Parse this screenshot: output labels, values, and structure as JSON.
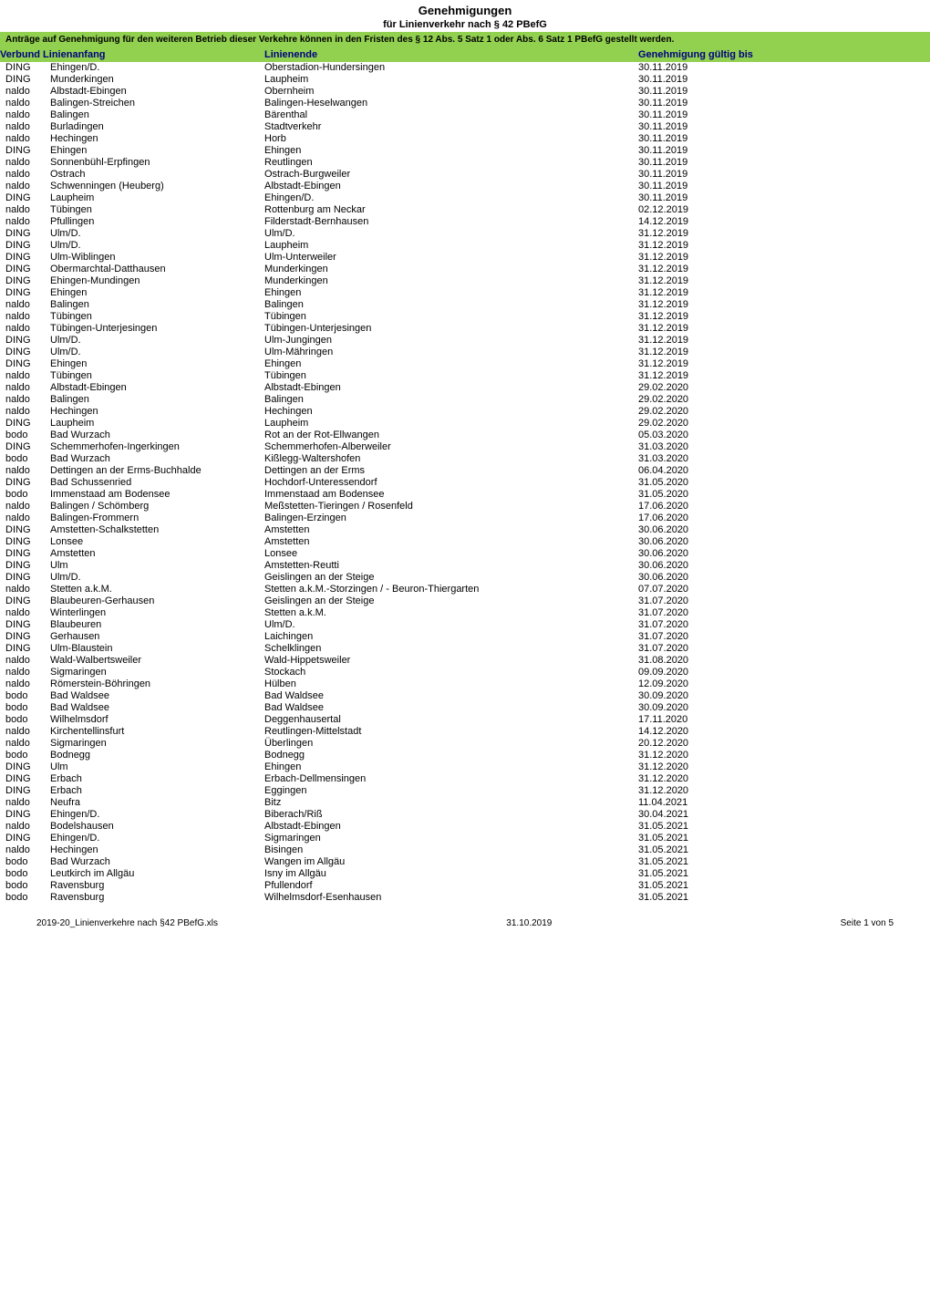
{
  "title": "Genehmigungen",
  "subtitle": "für Linienverkehr nach § 42 PBefG",
  "notice": "Anträge auf Genehmigung für den weiteren Betrieb dieser Verkehre können in den Fristen des § 12 Abs. 5 Satz 1 oder Abs. 6 Satz 1 PBefG gestellt werden.",
  "headers": {
    "anfang": "Verbund Linienanfang",
    "ende": "Linienende",
    "gueltig": "Genehmigung gültig bis"
  },
  "colors": {
    "header_bg": "#92d050",
    "header_text": "#000080",
    "body_bg": "#ffffff",
    "text": "#000000"
  },
  "rows": [
    {
      "v": "DING",
      "a": "Ehingen/D.",
      "e": "Oberstadion-Hundersingen",
      "g": "30.11.2019"
    },
    {
      "v": "DING",
      "a": "Munderkingen",
      "e": "Laupheim",
      "g": "30.11.2019"
    },
    {
      "v": "naldo",
      "a": "Albstadt-Ebingen",
      "e": "Obernheim",
      "g": "30.11.2019"
    },
    {
      "v": "naldo",
      "a": "Balingen-Streichen",
      "e": "Balingen-Heselwangen",
      "g": "30.11.2019"
    },
    {
      "v": "naldo",
      "a": "Balingen",
      "e": "Bärenthal",
      "g": "30.11.2019"
    },
    {
      "v": "naldo",
      "a": "Burladingen",
      "e": "Stadtverkehr",
      "g": "30.11.2019"
    },
    {
      "v": "naldo",
      "a": "Hechingen",
      "e": "Horb",
      "g": "30.11.2019"
    },
    {
      "v": "DING",
      "a": "Ehingen",
      "e": "Ehingen",
      "g": "30.11.2019"
    },
    {
      "v": "naldo",
      "a": "Sonnenbühl-Erpfingen",
      "e": "Reutlingen",
      "g": "30.11.2019"
    },
    {
      "v": "naldo",
      "a": "Ostrach",
      "e": "Ostrach-Burgweiler",
      "g": "30.11.2019"
    },
    {
      "v": "naldo",
      "a": "Schwenningen (Heuberg)",
      "e": "Albstadt-Ebingen",
      "g": "30.11.2019"
    },
    {
      "v": "DING",
      "a": "Laupheim",
      "e": "Ehingen/D.",
      "g": "30.11.2019"
    },
    {
      "v": "naldo",
      "a": "Tübingen",
      "e": "Rottenburg am Neckar",
      "g": "02.12.2019"
    },
    {
      "v": "naldo",
      "a": "Pfullingen",
      "e": "Filderstadt-Bernhausen",
      "g": "14.12.2019"
    },
    {
      "v": "DING",
      "a": "Ulm/D.",
      "e": "Ulm/D.",
      "g": "31.12.2019"
    },
    {
      "v": "DING",
      "a": "Ulm/D.",
      "e": "Laupheim",
      "g": "31.12.2019"
    },
    {
      "v": "DING",
      "a": "Ulm-Wiblingen",
      "e": "Ulm-Unterweiler",
      "g": "31.12.2019"
    },
    {
      "v": "DING",
      "a": "Obermarchtal-Datthausen",
      "e": "Munderkingen",
      "g": "31.12.2019"
    },
    {
      "v": "DING",
      "a": "Ehingen-Mundingen",
      "e": "Munderkingen",
      "g": "31.12.2019"
    },
    {
      "v": "DING",
      "a": "Ehingen",
      "e": "Ehingen",
      "g": "31.12.2019"
    },
    {
      "v": "naldo",
      "a": "Balingen",
      "e": "Balingen",
      "g": "31.12.2019"
    },
    {
      "v": "naldo",
      "a": "Tübingen",
      "e": "Tübingen",
      "g": "31.12.2019"
    },
    {
      "v": "naldo",
      "a": "Tübingen-Unterjesingen",
      "e": "Tübingen-Unterjesingen",
      "g": "31.12.2019"
    },
    {
      "v": "DING",
      "a": "Ulm/D.",
      "e": "Ulm-Jungingen",
      "g": "31.12.2019"
    },
    {
      "v": "DING",
      "a": "Ulm/D.",
      "e": "Ulm-Mähringen",
      "g": "31.12.2019"
    },
    {
      "v": "DING",
      "a": "Ehingen",
      "e": "Ehingen",
      "g": "31.12.2019"
    },
    {
      "v": "naldo",
      "a": "Tübingen",
      "e": "Tübingen",
      "g": "31.12.2019"
    },
    {
      "v": "naldo",
      "a": "Albstadt-Ebingen",
      "e": "Albstadt-Ebingen",
      "g": "29.02.2020"
    },
    {
      "v": "naldo",
      "a": "Balingen",
      "e": "Balingen",
      "g": "29.02.2020"
    },
    {
      "v": "naldo",
      "a": "Hechingen",
      "e": "Hechingen",
      "g": "29.02.2020"
    },
    {
      "v": "DING",
      "a": "Laupheim",
      "e": "Laupheim",
      "g": "29.02.2020"
    },
    {
      "v": "bodo",
      "a": "Bad Wurzach",
      "e": "Rot an der Rot-Ellwangen",
      "g": "05.03.2020"
    },
    {
      "v": "DING",
      "a": "Schemmerhofen-Ingerkingen",
      "e": "Schemmerhofen-Alberweiler",
      "g": "31.03.2020"
    },
    {
      "v": "bodo",
      "a": "Bad Wurzach",
      "e": "Kißlegg-Waltershofen",
      "g": "31.03.2020"
    },
    {
      "v": "naldo",
      "a": "Dettingen an der Erms-Buchhalde",
      "e": "Dettingen an der Erms",
      "g": "06.04.2020"
    },
    {
      "v": "DING",
      "a": "Bad Schussenried",
      "e": "Hochdorf-Unteressendorf",
      "g": "31.05.2020"
    },
    {
      "v": "bodo",
      "a": "Immenstaad am Bodensee",
      "e": "Immenstaad am Bodensee",
      "g": "31.05.2020"
    },
    {
      "v": "naldo",
      "a": "Balingen / Schömberg",
      "e": "Meßstetten-Tieringen / Rosenfeld",
      "g": "17.06.2020"
    },
    {
      "v": "naldo",
      "a": "Balingen-Frommern",
      "e": "Balingen-Erzingen",
      "g": "17.06.2020"
    },
    {
      "v": "DING",
      "a": "Amstetten-Schalkstetten",
      "e": "Amstetten",
      "g": "30.06.2020"
    },
    {
      "v": "DING",
      "a": "Lonsee",
      "e": "Amstetten",
      "g": "30.06.2020"
    },
    {
      "v": "DING",
      "a": "Amstetten",
      "e": "Lonsee",
      "g": "30.06.2020"
    },
    {
      "v": "DING",
      "a": "Ulm",
      "e": "Amstetten-Reutti",
      "g": "30.06.2020"
    },
    {
      "v": "DING",
      "a": "Ulm/D.",
      "e": "Geislingen an der Steige",
      "g": "30.06.2020"
    },
    {
      "v": "naldo",
      "a": "Stetten a.k.M.",
      "e": "Stetten a.k.M.-Storzingen / - Beuron-Thiergarten",
      "g": "07.07.2020"
    },
    {
      "v": "DING",
      "a": "Blaubeuren-Gerhausen",
      "e": "Geislingen an der Steige",
      "g": "31.07.2020"
    },
    {
      "v": "naldo",
      "a": "Winterlingen",
      "e": "Stetten a.k.M.",
      "g": "31.07.2020"
    },
    {
      "v": "DING",
      "a": "Blaubeuren",
      "e": "Ulm/D.",
      "g": "31.07.2020"
    },
    {
      "v": "DING",
      "a": "Gerhausen",
      "e": "Laichingen",
      "g": "31.07.2020"
    },
    {
      "v": "DING",
      "a": "Ulm-Blaustein",
      "e": "Schelklingen",
      "g": "31.07.2020"
    },
    {
      "v": "naldo",
      "a": "Wald-Walbertsweiler",
      "e": "Wald-Hippetsweiler",
      "g": "31.08.2020"
    },
    {
      "v": "naldo",
      "a": "Sigmaringen",
      "e": "Stockach",
      "g": "09.09.2020"
    },
    {
      "v": "naldo",
      "a": "Römerstein-Böhringen",
      "e": "Hülben",
      "g": "12.09.2020"
    },
    {
      "v": "bodo",
      "a": "Bad Waldsee",
      "e": "Bad Waldsee",
      "g": "30.09.2020"
    },
    {
      "v": "bodo",
      "a": "Bad Waldsee",
      "e": "Bad Waldsee",
      "g": "30.09.2020"
    },
    {
      "v": "bodo",
      "a": "Wilhelmsdorf",
      "e": "Deggenhausertal",
      "g": "17.11.2020"
    },
    {
      "v": "naldo",
      "a": "Kirchentellinsfurt",
      "e": "Reutlingen-Mittelstadt",
      "g": "14.12.2020"
    },
    {
      "v": "naldo",
      "a": "Sigmaringen",
      "e": "Überlingen",
      "g": "20.12.2020"
    },
    {
      "v": "bodo",
      "a": "Bodnegg",
      "e": "Bodnegg",
      "g": "31.12.2020"
    },
    {
      "v": "DING",
      "a": "Ulm",
      "e": "Ehingen",
      "g": "31.12.2020"
    },
    {
      "v": "DING",
      "a": "Erbach",
      "e": "Erbach-Dellmensingen",
      "g": "31.12.2020"
    },
    {
      "v": "DING",
      "a": "Erbach",
      "e": "Eggingen",
      "g": "31.12.2020"
    },
    {
      "v": "naldo",
      "a": "Neufra",
      "e": "Bitz",
      "g": "11.04.2021"
    },
    {
      "v": "DING",
      "a": "Ehingen/D.",
      "e": "Biberach/Riß",
      "g": "30.04.2021"
    },
    {
      "v": "naldo",
      "a": "Bodelshausen",
      "e": "Albstadt-Ebingen",
      "g": "31.05.2021"
    },
    {
      "v": "DING",
      "a": "Ehingen/D.",
      "e": "Sigmaringen",
      "g": "31.05.2021"
    },
    {
      "v": "naldo",
      "a": "Hechingen",
      "e": "Bisingen",
      "g": "31.05.2021"
    },
    {
      "v": "bodo",
      "a": "Bad Wurzach",
      "e": "Wangen im Allgäu",
      "g": "31.05.2021"
    },
    {
      "v": "bodo",
      "a": "Leutkirch im Allgäu",
      "e": "Isny im Allgäu",
      "g": "31.05.2021"
    },
    {
      "v": "bodo",
      "a": "Ravensburg",
      "e": "Pfullendorf",
      "g": "31.05.2021"
    },
    {
      "v": "bodo",
      "a": "Ravensburg",
      "e": "Wilhelmsdorf-Esenhausen",
      "g": "31.05.2021"
    }
  ],
  "footer": {
    "left": "2019-20_Linienverkehre nach §42 PBefG.xls",
    "center": "31.10.2019",
    "right": "Seite 1 von 5"
  }
}
